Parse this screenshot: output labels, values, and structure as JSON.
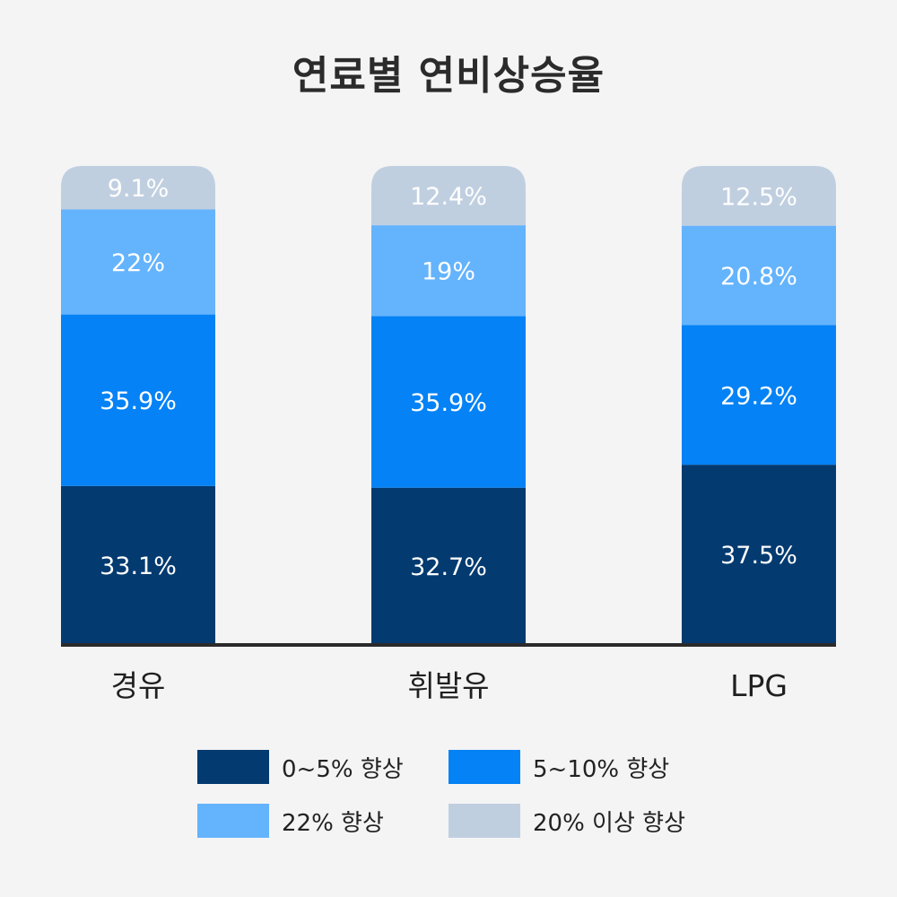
{
  "title": "연료별 연비상승율",
  "chart_data": {
    "type": "bar",
    "stacked": true,
    "title": "연료별 연비상승율",
    "categories": [
      "경유",
      "휘발유",
      "LPG"
    ],
    "series": [
      {
        "name": "0~5% 향상",
        "color": "#033a70",
        "values": [
          33.1,
          32.7,
          37.5
        ],
        "labels": [
          "33.1%",
          "32.7%",
          "37.5%"
        ]
      },
      {
        "name": "5~10% 향상",
        "color": "#0582f5",
        "values": [
          35.9,
          35.9,
          29.2
        ],
        "labels": [
          "35.9%",
          "35.9%",
          "29.2%"
        ]
      },
      {
        "name": "22% 향상",
        "color": "#64b3fd",
        "values": [
          22,
          19,
          20.8
        ],
        "labels": [
          "22%",
          "19%",
          "20.8%"
        ]
      },
      {
        "name": "20% 이상 향상",
        "color": "#c0cfe0",
        "values": [
          9.1,
          12.4,
          12.5
        ],
        "labels": [
          "9.1%",
          "12.4%",
          "12.5%"
        ]
      }
    ],
    "ylim": [
      0,
      100
    ],
    "legend_position": "bottom",
    "grid": false
  }
}
